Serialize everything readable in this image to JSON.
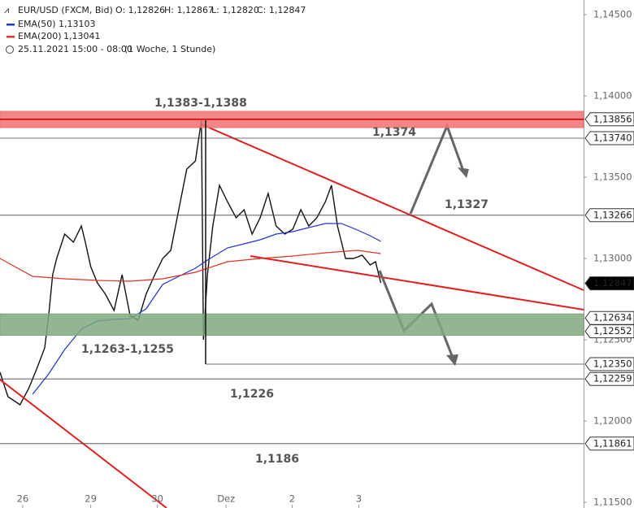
{
  "chart_data": {
    "type": "line",
    "header": {
      "symbol": "EUR/USD (FXCM, Bid)",
      "open": "O: 1,12826",
      "high": "H: 1,12867",
      "low": "L: 1,12820",
      "close": "C: 1,12847",
      "period": "25.11.2021 15:00 - 08:00",
      "interval": "(1 Woche, 1 Stunde)"
    },
    "series": [
      {
        "name": "EUR/USD (FXCM, Bid)",
        "color": "#111111",
        "x": [
          -0.34,
          -0.22,
          -0.04,
          0.09,
          0.21,
          0.33,
          0.39,
          0.45,
          0.51,
          0.63,
          0.76,
          0.88,
          0.94,
          1.02,
          1.12,
          1.24,
          1.37,
          1.49,
          1.61,
          1.73,
          1.85,
          1.98,
          2.1,
          2.22,
          2.34,
          2.46,
          2.59,
          2.68,
          2.71,
          2.77,
          2.85,
          2.95,
          3.07,
          3.2,
          3.32,
          3.44,
          3.56,
          3.68,
          3.8,
          3.93,
          4.05,
          4.17,
          4.29,
          4.41,
          4.54,
          4.63,
          4.72,
          4.84,
          4.96,
          5.09,
          5.21,
          5.29,
          5.37
        ],
        "values": [
          1.123,
          1.1215,
          1.121,
          1.122,
          1.1232,
          1.1245,
          1.1265,
          1.129,
          1.13,
          1.1315,
          1.131,
          1.132,
          1.131,
          1.1295,
          1.1285,
          1.1278,
          1.1268,
          1.129,
          1.1265,
          1.1262,
          1.1278,
          1.129,
          1.13,
          1.1305,
          1.133,
          1.1355,
          1.136,
          1.1385,
          1.125,
          1.129,
          1.132,
          1.1345,
          1.1335,
          1.1325,
          1.133,
          1.1315,
          1.1325,
          1.134,
          1.132,
          1.1315,
          1.1318,
          1.133,
          1.132,
          1.1325,
          1.1335,
          1.1345,
          1.132,
          1.13,
          1.13,
          1.1302,
          1.1296,
          1.1298,
          1.1285
        ]
      },
      {
        "name": "EMA(50)",
        "legend_value": "1,13103",
        "color": "#2233cc",
        "x": [
          0.15,
          0.39,
          0.63,
          0.88,
          1.12,
          1.37,
          1.61,
          1.85,
          2.1,
          2.34,
          2.59,
          2.77,
          3.07,
          3.32,
          3.56,
          3.8,
          4.05,
          4.29,
          4.54,
          4.78,
          5.02,
          5.21,
          5.37
        ],
        "values": [
          1.12165,
          1.1229,
          1.1244,
          1.12565,
          1.12615,
          1.12625,
          1.1263,
          1.1269,
          1.1284,
          1.1289,
          1.1294,
          1.1299,
          1.13065,
          1.1309,
          1.13115,
          1.1315,
          1.13165,
          1.1319,
          1.13215,
          1.13215,
          1.13175,
          1.1314,
          1.13105
        ]
      },
      {
        "name": "EMA(200)",
        "legend_value": "1,13041",
        "color": "#dd3322",
        "x": [
          -0.34,
          0.15,
          0.63,
          1.12,
          1.61,
          2.1,
          2.59,
          3.07,
          3.56,
          4.05,
          4.54,
          5.02,
          5.37
        ],
        "values": [
          1.13,
          1.1289,
          1.12875,
          1.12865,
          1.1286,
          1.12875,
          1.12915,
          1.1298,
          1.13,
          1.13015,
          1.13035,
          1.1305,
          1.1303
        ]
      }
    ],
    "xlim": [
      -0.34,
      8.41
    ],
    "xticks": [
      {
        "value": 0,
        "label": "26"
      },
      {
        "value": 1.02,
        "label": "29"
      },
      {
        "value": 2.02,
        "label": "30"
      },
      {
        "value": 3.05,
        "label": "Dez"
      },
      {
        "value": 4.04,
        "label": "2"
      },
      {
        "value": 5.04,
        "label": "3"
      }
    ],
    "ylim": [
      1.11465,
      1.1459
    ],
    "yticks": [
      {
        "value": 1.145,
        "label": "1,14500"
      },
      {
        "value": 1.14,
        "label": "1,14000"
      },
      {
        "value": 1.135,
        "label": "1,13500"
      },
      {
        "value": 1.13,
        "label": "1,13000"
      },
      {
        "value": 1.125,
        "label": "1,12500"
      },
      {
        "value": 1.12,
        "label": "1,12000"
      },
      {
        "value": 1.115,
        "label": "1,11500"
      }
    ],
    "levels": [
      {
        "value": 1.13856,
        "label": "1,13856"
      },
      {
        "value": 1.1374,
        "label": "1,13740"
      },
      {
        "value": 1.13266,
        "label": "1,13266"
      },
      {
        "value": 1.12847,
        "label": "1,12847"
      },
      {
        "value": 1.12634,
        "label": "1,12634"
      },
      {
        "value": 1.12552,
        "label": "1,12552"
      },
      {
        "value": 1.1235,
        "label": "1,12350"
      },
      {
        "value": 1.12259,
        "label": "1,12259"
      },
      {
        "value": 1.11861,
        "label": "1,11861"
      }
    ],
    "bands": [
      {
        "range": [
          1.1383,
          1.1388
        ],
        "label": "1,1383-1,1388",
        "color": "#f07070"
      },
      {
        "range": [
          1.12552,
          1.12634
        ],
        "label": "1,1263-1,1255",
        "color": "#7fa87f"
      }
    ],
    "annotations": [
      "1,1374",
      "1,1327",
      "1,1226",
      "1,1186"
    ]
  }
}
